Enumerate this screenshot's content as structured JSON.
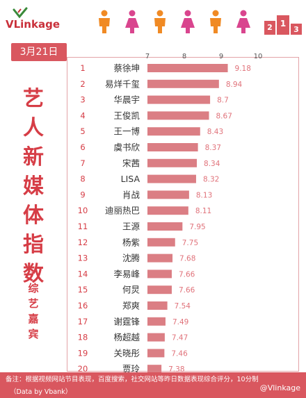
{
  "header": {
    "brand_name": "VLinkage",
    "logo_accent": "#c9303a",
    "brand_accent": "#3a8a3a",
    "podium_icons": [
      "2",
      "1",
      "3"
    ]
  },
  "date_badge": "3月21日",
  "side_title": {
    "chars": [
      "艺",
      "人",
      "新",
      "媒",
      "体",
      "指",
      "数"
    ],
    "star": "*",
    "sub_chars": [
      "综",
      "艺",
      "嘉",
      "宾"
    ]
  },
  "footer": {
    "note": "备注：根据视频网站节目表现，百度搜索，社交网站等昨日数据表现综合评分，10分制",
    "source": "（Data by Vbank）",
    "weibo": "@Vlinkage"
  },
  "colors": {
    "bar": "#db7e84",
    "accent": "#d9575f",
    "text_red": "#d63d46",
    "label_value": "#e0727a"
  },
  "chart_data": {
    "type": "bar",
    "orientation": "horizontal",
    "title": "艺人新媒体指数",
    "subtitle": "综艺嘉宾",
    "xlim": [
      7,
      10
    ],
    "xticks": [
      7,
      8,
      9,
      10
    ],
    "grid": false,
    "ranks": [
      "1",
      "2",
      "3",
      "4",
      "5",
      "6",
      "7",
      "8",
      "9",
      "10",
      "11",
      "12",
      "13",
      "14",
      "15",
      "16",
      "17",
      "18",
      "19",
      "20"
    ],
    "categories": [
      "蔡徐坤",
      "易烊千玺",
      "华晨宇",
      "王俊凯",
      "王一博",
      "虞书欣",
      "宋茜",
      "LISA",
      "肖战",
      "迪丽热巴",
      "王源",
      "杨紫",
      "沈腾",
      "李易峰",
      "何炅",
      "郑爽",
      "谢霆锋",
      "杨超越",
      "关晓彤",
      "贾玲"
    ],
    "values": [
      9.18,
      8.94,
      8.7,
      8.67,
      8.43,
      8.37,
      8.34,
      8.32,
      8.13,
      8.11,
      7.95,
      7.75,
      7.68,
      7.66,
      7.66,
      7.54,
      7.49,
      7.47,
      7.46,
      7.38
    ],
    "value_labels": [
      "9.18",
      "8.94",
      "8.7",
      "8.67",
      "8.43",
      "8.37",
      "8.34",
      "8.32",
      "8.13",
      "8.11",
      "7.95",
      "7.75",
      "7.68",
      "7.66",
      "7.66",
      "7.54",
      "7.49",
      "7.47",
      "7.46",
      "7.38"
    ]
  }
}
